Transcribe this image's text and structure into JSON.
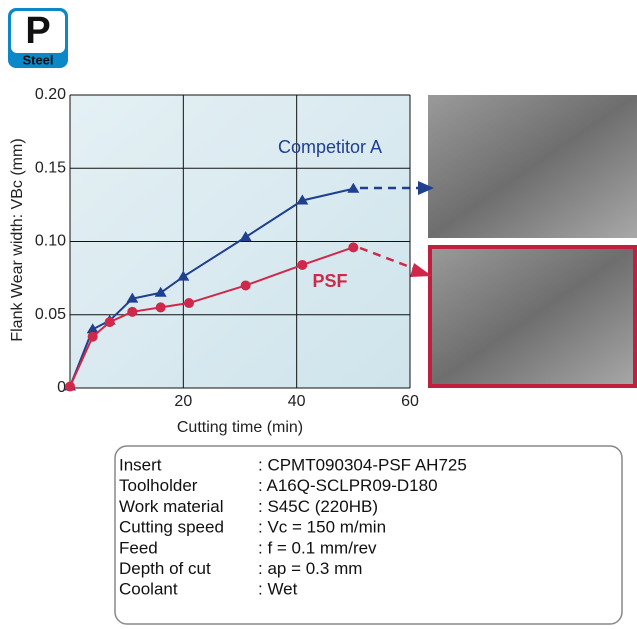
{
  "badge": {
    "letter": "P",
    "label": "Steel"
  },
  "chart_data": {
    "type": "line",
    "xlabel": "Cutting time (min)",
    "ylabel": "Flank Wear width: VBc (mm)",
    "xlim": [
      0,
      60
    ],
    "xticks": [
      20,
      40,
      60
    ],
    "ylim": [
      0,
      0.2
    ],
    "yticks": [
      0,
      0.05,
      {
        "value": 0.1,
        "label": "0.10"
      },
      0.15,
      {
        "value": 0.2,
        "label": "0.20"
      }
    ],
    "grid": true,
    "series": [
      {
        "name": "Competitor A",
        "color": "#1f3f8f",
        "marker": "triangle",
        "x": [
          0,
          4,
          7,
          11,
          16,
          20,
          31,
          41,
          50
        ],
        "values": [
          0.001,
          0.04,
          0.046,
          0.061,
          0.065,
          0.076,
          0.103,
          0.128,
          0.136
        ]
      },
      {
        "name": "PSF",
        "color": "#d0284a",
        "marker": "circle",
        "x": [
          0,
          4,
          7,
          11,
          16,
          21,
          31,
          41,
          50
        ],
        "values": [
          0.001,
          0.035,
          0.045,
          0.052,
          0.055,
          0.058,
          0.07,
          0.084,
          0.096
        ]
      }
    ]
  },
  "specs": {
    "rows": [
      [
        "Insert",
        ": CPMT090304-PSF AH725"
      ],
      [
        "Toolholder",
        ": A16Q-SCLPR09-D180"
      ],
      [
        "Work material",
        ": S45C (220HB)"
      ],
      [
        "Cutting speed",
        ": Vc = 150 m/min"
      ],
      [
        "Feed",
        ": f = 0.1 mm/rev"
      ],
      [
        "Depth of cut",
        ": ap = 0.3 mm"
      ],
      [
        "Coolant",
        ": Wet"
      ]
    ]
  }
}
